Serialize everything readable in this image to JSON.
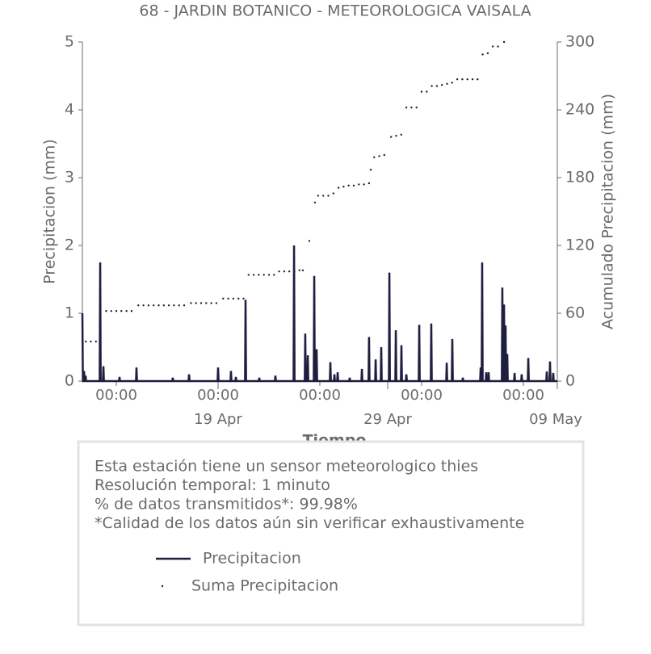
{
  "chart_data": {
    "type": "line",
    "title": "68 - JARDIN BOTANICO - METEOROLOGICA VAISALA",
    "xlabel": "Tiempo",
    "ylabel": "Precipitacion (mm)",
    "y2label": "Acumulado Precipitacion (mm)",
    "xlim": [
      0,
      28
    ],
    "xticks": [
      {
        "value": 2,
        "label": "00:00"
      },
      {
        "value": 8,
        "label": "00:00"
      },
      {
        "value": 14,
        "label": "00:00"
      },
      {
        "value": 20,
        "label": "00:00"
      },
      {
        "value": 26,
        "label": "00:00"
      }
    ],
    "x_date_ticks": [
      {
        "value": 8,
        "label": "19 Apr"
      },
      {
        "value": 18,
        "label": "29 Apr"
      },
      {
        "value": 28,
        "label": "09 May"
      }
    ],
    "ylim": [
      0,
      5
    ],
    "yticks": [
      0,
      1,
      2,
      3,
      4,
      5
    ],
    "y2lim": [
      0,
      300
    ],
    "y2ticks": [
      0,
      60,
      120,
      180,
      240,
      300
    ],
    "series": [
      {
        "name": "Precipitacion",
        "color": "#1e1e40",
        "type": "line",
        "x": [
          0,
          0.03,
          0.07,
          0.1,
          0.13,
          0.16,
          0.19,
          0.22,
          1.02,
          1.05,
          1.08,
          1.21,
          1.24,
          1.27,
          2.16,
          2.19,
          2.22,
          3.16,
          3.19,
          3.22,
          5.3,
          5.33,
          5.36,
          6.26,
          6.29,
          6.32,
          7.97,
          8.0,
          8.03,
          8.73,
          8.76,
          8.79,
          9.02,
          9.05,
          9.08,
          9.59,
          9.62,
          9.65,
          10.4,
          10.43,
          10.46,
          11.35,
          11.38,
          11.41,
          12.45,
          12.48,
          12.51,
          13.11,
          13.14,
          13.17,
          13.26,
          13.29,
          13.32,
          13.64,
          13.67,
          13.7,
          13.78,
          13.81,
          13.84,
          14.59,
          14.62,
          14.65,
          14.83,
          14.86,
          14.89,
          15.02,
          15.05,
          15.08,
          15.73,
          15.76,
          15.79,
          16.45,
          16.48,
          16.51,
          16.87,
          16.9,
          16.93,
          17.26,
          17.29,
          17.32,
          17.59,
          17.62,
          17.65,
          18.07,
          18.1,
          18.13,
          18.45,
          18.48,
          18.51,
          18.78,
          18.81,
          18.84,
          19.07,
          19.1,
          19.13,
          19.83,
          19.86,
          19.89,
          20.54,
          20.57,
          20.6,
          21.45,
          21.48,
          21.51,
          21.78,
          21.81,
          21.84,
          22.4,
          22.43,
          22.46,
          23.45,
          23.48,
          23.51,
          23.54,
          23.57,
          23.6,
          23.78,
          23.81,
          23.84,
          23.92,
          23.95,
          23.98,
          24.73,
          24.76,
          24.79,
          24.83,
          24.86,
          24.89,
          24.92,
          24.95,
          24.98,
          25.02,
          25.05,
          25.08,
          25.45,
          25.48,
          25.51,
          25.87,
          25.9,
          25.93,
          26.26,
          26.29,
          26.32,
          27.35,
          27.38,
          27.41,
          27.54,
          27.57,
          27.6,
          27.73,
          27.76,
          27.79,
          28
        ],
        "values": [
          1.0,
          0,
          0,
          0.15,
          0,
          0,
          0.08,
          0,
          0,
          1.75,
          0,
          0,
          0.22,
          0,
          0,
          0.06,
          0,
          0,
          0.2,
          0,
          0,
          0.05,
          0,
          0,
          0.1,
          0,
          0,
          0.2,
          0,
          0,
          0.15,
          0,
          0,
          0.06,
          0,
          0,
          1.2,
          0,
          0,
          0.05,
          0,
          0,
          0.08,
          0,
          0,
          2.0,
          0,
          0,
          0.7,
          0,
          0,
          0.38,
          0,
          0,
          1.55,
          0,
          0,
          0.47,
          0,
          0,
          0.28,
          0,
          0,
          0.1,
          0,
          0,
          0.13,
          0,
          0,
          0.05,
          0,
          0,
          0.18,
          0,
          0,
          0.65,
          0,
          0,
          0.32,
          0,
          0,
          0.5,
          0,
          0,
          1.6,
          0,
          0,
          0.75,
          0,
          0,
          0.53,
          0,
          0,
          0.1,
          0,
          0,
          0.83,
          0,
          0,
          0.85,
          0,
          0,
          0.27,
          0,
          0,
          0.62,
          0,
          0,
          0.05,
          0,
          0,
          0.2,
          0,
          0,
          1.75,
          0,
          0,
          0.13,
          0,
          0,
          0.13,
          0,
          0,
          1.38,
          0,
          0,
          1.13,
          0,
          0,
          0.82,
          0,
          0,
          0.4,
          0,
          0,
          0.12,
          0,
          0,
          0.1,
          0,
          0,
          0.34,
          0,
          0,
          0.14,
          0,
          0,
          0.29,
          0,
          0,
          0.12,
          0,
          0
        ]
      },
      {
        "name": "Suma Precipitacion",
        "color": "#1e1e40",
        "type": "scatter",
        "axis": "y2",
        "x": [
          0.2,
          0.5,
          0.8,
          1.05,
          1.4,
          1.7,
          2.0,
          2.3,
          2.6,
          2.9,
          3.3,
          3.6,
          3.9,
          4.2,
          4.5,
          4.8,
          5.1,
          5.4,
          5.7,
          6.0,
          6.4,
          6.7,
          7.0,
          7.3,
          7.6,
          7.9,
          8.3,
          8.6,
          8.9,
          9.2,
          9.5,
          9.8,
          10.1,
          10.4,
          10.7,
          11.0,
          11.3,
          11.6,
          11.9,
          12.2,
          12.5,
          12.8,
          13.0,
          13.38,
          13.71,
          13.9,
          14.2,
          14.5,
          14.8,
          15.1,
          15.4,
          15.7,
          16.0,
          16.3,
          16.6,
          16.9,
          17.0,
          17.2,
          17.5,
          17.8,
          18.2,
          18.5,
          18.8,
          19.1,
          19.4,
          19.7,
          20.0,
          20.3,
          20.6,
          20.9,
          21.2,
          21.5,
          21.8,
          22.1,
          22.4,
          22.7,
          23.0,
          23.3,
          23.6,
          23.9,
          24.2,
          24.5,
          24.86
        ],
        "values": [
          35,
          35,
          35,
          56,
          62,
          62,
          62,
          62,
          62,
          62,
          67,
          67,
          67,
          67,
          67,
          67,
          67,
          67,
          67,
          67,
          69,
          69,
          69,
          69,
          69,
          69,
          73,
          73,
          73,
          73,
          73,
          94,
          94,
          94,
          94,
          94,
          94,
          97,
          97,
          97,
          97,
          98,
          98,
          124,
          158,
          164,
          164,
          164,
          166,
          171,
          172,
          173,
          173,
          174,
          174,
          175,
          187,
          198,
          199,
          200,
          216,
          217,
          218,
          242,
          242,
          242,
          256,
          256,
          261,
          261,
          262,
          263,
          264,
          267,
          267,
          267,
          267,
          267,
          289,
          290,
          296,
          296,
          300
        ]
      }
    ],
    "notes": [
      "Esta estación tiene un sensor meteorologico thies",
      "Resolución temporal: 1 minuto",
      "% de datos transmitidos*: 99.98%",
      "*Calidad de los datos aún sin verificar exhaustivamente"
    ]
  }
}
